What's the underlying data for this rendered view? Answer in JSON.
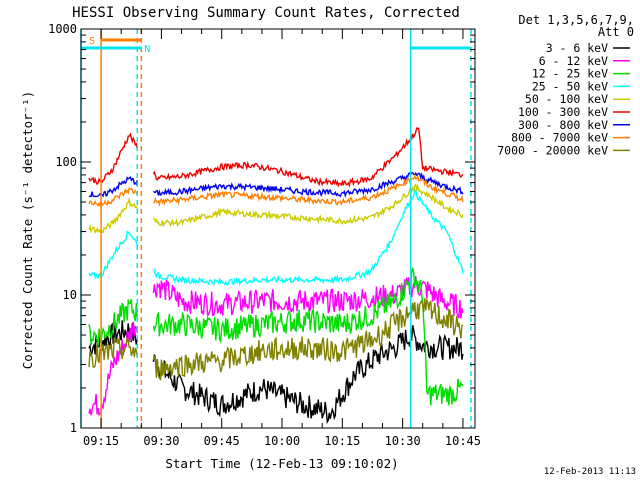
{
  "chart_data": {
    "type": "line",
    "title": "HESSI Observing Summary Count Rates, Corrected",
    "xlabel": "Start Time (12-Feb-13 09:10:02)",
    "ylabel": "Corrected Count Rate (s⁻¹ detector⁻¹)",
    "timestamp": "12-Feb-2013 11:13",
    "x_unit": "minutes",
    "xlim": [
      "09:10",
      "10:48"
    ],
    "ylim": [
      1,
      1000
    ],
    "y_scale": "log",
    "x_ticks": [
      "09:15",
      "09:30",
      "09:45",
      "10:00",
      "10:15",
      "10:30",
      "10:45"
    ],
    "y_ticks": [
      "1",
      "10",
      "100",
      "1000"
    ],
    "legend": {
      "position": "top-right",
      "header": [
        "Det 1,3,5,6,7,9,",
        "Att 0"
      ]
    },
    "markers": [
      {
        "label": "S",
        "color": "#ff8000",
        "start": "09:15",
        "end": "09:25"
      },
      {
        "label": "N",
        "color": "#00e5ee",
        "start": "09:10",
        "end": "09:25"
      },
      {
        "label": "",
        "color": "#00e5ee",
        "start": "10:32",
        "end": "10:47"
      }
    ],
    "event_lines": [
      {
        "time": "09:10",
        "color": "#00e5ee",
        "style": "solid"
      },
      {
        "time": "09:24",
        "color": "#00e5ee",
        "style": "dashed"
      },
      {
        "time": "09:25",
        "color": "#ff8000",
        "style": "dashed"
      },
      {
        "time": "09:15",
        "color": "#ff8000",
        "style": "solid"
      },
      {
        "time": "10:32",
        "color": "#00e5ee",
        "style": "solid"
      },
      {
        "time": "10:47",
        "color": "#00e5ee",
        "style": "dashed"
      }
    ],
    "gap": [
      "09:24",
      "09:28"
    ],
    "series": [
      {
        "name": "3 - 6 keV",
        "color": "#000000",
        "points": [
          [
            "09:12",
            4
          ],
          [
            "09:15",
            4.5
          ],
          [
            "09:18",
            5
          ],
          [
            "09:22",
            5.5
          ],
          [
            "09:29",
            3
          ],
          [
            "09:35",
            2
          ],
          [
            "09:45",
            1.5
          ],
          [
            "09:55",
            2
          ],
          [
            "10:05",
            1.5
          ],
          [
            "10:12",
            1.3
          ],
          [
            "10:18",
            2.5
          ],
          [
            "10:24",
            3.5
          ],
          [
            "10:28",
            4
          ],
          [
            "10:32",
            5
          ],
          [
            "10:35",
            4.2
          ],
          [
            "10:40",
            4
          ],
          [
            "10:45",
            4
          ]
        ]
      },
      {
        "name": "6 - 12 keV",
        "color": "#ff00ff",
        "points": [
          [
            "09:12",
            1.5
          ],
          [
            "09:15",
            1.5
          ],
          [
            "09:18",
            3
          ],
          [
            "09:22",
            5
          ],
          [
            "09:29",
            12
          ],
          [
            "09:35",
            9
          ],
          [
            "09:45",
            8.5
          ],
          [
            "09:55",
            9
          ],
          [
            "10:05",
            9
          ],
          [
            "10:15",
            9
          ],
          [
            "10:22",
            9.5
          ],
          [
            "10:28",
            10
          ],
          [
            "10:33",
            12
          ],
          [
            "10:36",
            11
          ],
          [
            "10:40",
            9
          ],
          [
            "10:45",
            8
          ]
        ]
      },
      {
        "name": "12 - 25 keV",
        "color": "#00dd00",
        "points": [
          [
            "09:12",
            5
          ],
          [
            "09:15",
            5
          ],
          [
            "09:18",
            6
          ],
          [
            "09:22",
            8
          ],
          [
            "09:29",
            6
          ],
          [
            "09:35",
            6
          ],
          [
            "09:45",
            5.5
          ],
          [
            "09:55",
            6
          ],
          [
            "10:05",
            6.5
          ],
          [
            "10:15",
            6
          ],
          [
            "10:22",
            7
          ],
          [
            "10:28",
            9
          ],
          [
            "10:33",
            14
          ],
          [
            "10:35",
            10
          ],
          [
            "10:36",
            1.8
          ],
          [
            "10:42",
            1.8
          ],
          [
            "10:45",
            2
          ]
        ]
      },
      {
        "name": "25 - 50 keV",
        "color": "#00ffff",
        "points": [
          [
            "09:12",
            14
          ],
          [
            "09:15",
            14
          ],
          [
            "09:18",
            20
          ],
          [
            "09:22",
            30
          ],
          [
            "09:29",
            14
          ],
          [
            "09:35",
            13
          ],
          [
            "09:45",
            12.5
          ],
          [
            "09:55",
            13
          ],
          [
            "10:05",
            13
          ],
          [
            "10:15",
            13
          ],
          [
            "10:22",
            15
          ],
          [
            "10:27",
            25
          ],
          [
            "10:30",
            40
          ],
          [
            "10:33",
            60
          ],
          [
            "10:37",
            40
          ],
          [
            "10:41",
            30
          ],
          [
            "10:45",
            15
          ]
        ]
      },
      {
        "name": "50 - 100 keV",
        "color": "#cccc00",
        "points": [
          [
            "09:12",
            32
          ],
          [
            "09:15",
            30
          ],
          [
            "09:18",
            35
          ],
          [
            "09:22",
            50
          ],
          [
            "09:29",
            35
          ],
          [
            "09:35",
            35
          ],
          [
            "09:45",
            42
          ],
          [
            "09:55",
            40
          ],
          [
            "10:05",
            38
          ],
          [
            "10:15",
            36
          ],
          [
            "10:22",
            38
          ],
          [
            "10:28",
            48
          ],
          [
            "10:33",
            65
          ],
          [
            "10:37",
            55
          ],
          [
            "10:41",
            45
          ],
          [
            "10:45",
            40
          ]
        ]
      },
      {
        "name": "100 - 300 keV",
        "color": "#ee0000",
        "points": [
          [
            "09:12",
            75
          ],
          [
            "09:15",
            70
          ],
          [
            "09:18",
            90
          ],
          [
            "09:22",
            160
          ],
          [
            "09:29",
            75
          ],
          [
            "09:35",
            78
          ],
          [
            "09:45",
            92
          ],
          [
            "09:52",
            95
          ],
          [
            "10:00",
            85
          ],
          [
            "10:08",
            72
          ],
          [
            "10:15",
            68
          ],
          [
            "10:22",
            75
          ],
          [
            "10:28",
            110
          ],
          [
            "10:32",
            150
          ],
          [
            "10:34",
            180
          ],
          [
            "10:35",
            90
          ],
          [
            "10:40",
            85
          ],
          [
            "10:45",
            80
          ]
        ]
      },
      {
        "name": "300 - 800 keV",
        "color": "#0000ee",
        "points": [
          [
            "09:12",
            58
          ],
          [
            "09:15",
            55
          ],
          [
            "09:18",
            62
          ],
          [
            "09:22",
            75
          ],
          [
            "09:29",
            58
          ],
          [
            "09:35",
            60
          ],
          [
            "09:45",
            66
          ],
          [
            "09:55",
            64
          ],
          [
            "10:05",
            60
          ],
          [
            "10:15",
            58
          ],
          [
            "10:22",
            62
          ],
          [
            "10:28",
            72
          ],
          [
            "10:33",
            82
          ],
          [
            "10:37",
            72
          ],
          [
            "10:41",
            65
          ],
          [
            "10:45",
            60
          ]
        ]
      },
      {
        "name": "800 - 7000 keV",
        "color": "#ff8000",
        "points": [
          [
            "09:12",
            50
          ],
          [
            "09:15",
            48
          ],
          [
            "09:18",
            52
          ],
          [
            "09:22",
            62
          ],
          [
            "09:29",
            50
          ],
          [
            "09:35",
            52
          ],
          [
            "09:45",
            57
          ],
          [
            "09:55",
            55
          ],
          [
            "10:05",
            52
          ],
          [
            "10:15",
            50
          ],
          [
            "10:22",
            54
          ],
          [
            "10:28",
            64
          ],
          [
            "10:33",
            78
          ],
          [
            "10:37",
            65
          ],
          [
            "10:41",
            58
          ],
          [
            "10:45",
            52
          ]
        ]
      },
      {
        "name": "7000 - 20000 keV",
        "color": "#808000",
        "points": [
          [
            "09:12",
            3.5
          ],
          [
            "09:15",
            3.5
          ],
          [
            "09:18",
            3.8
          ],
          [
            "09:22",
            4
          ],
          [
            "09:29",
            2.8
          ],
          [
            "09:35",
            3
          ],
          [
            "09:45",
            3.2
          ],
          [
            "09:55",
            3.8
          ],
          [
            "10:05",
            4
          ],
          [
            "10:15",
            3.8
          ],
          [
            "10:22",
            4.5
          ],
          [
            "10:28",
            6
          ],
          [
            "10:33",
            8
          ],
          [
            "10:37",
            7.5
          ],
          [
            "10:41",
            6.5
          ],
          [
            "10:45",
            5.5
          ]
        ]
      }
    ]
  }
}
